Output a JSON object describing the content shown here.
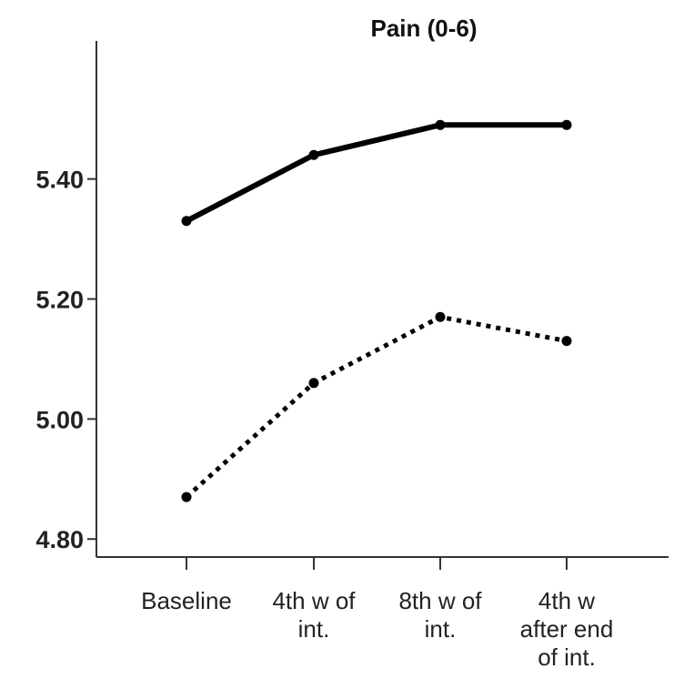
{
  "chart_data": {
    "type": "line",
    "title": "Pain (0-6)",
    "xlabel": "",
    "ylabel": "",
    "categories": [
      [
        "Baseline"
      ],
      [
        "4th w of",
        "int."
      ],
      [
        "8th w of",
        "int."
      ],
      [
        "4th w",
        "after end",
        "of int."
      ]
    ],
    "yticks": [
      "4.80",
      "5.00",
      "5.20",
      "5.40"
    ],
    "ylim": [
      4.77,
      5.63
    ],
    "grid": false,
    "legend": "none",
    "series": [
      {
        "style": "solid",
        "color": "#000000",
        "values": [
          5.33,
          5.44,
          5.49,
          5.49
        ]
      },
      {
        "style": "dotted",
        "color": "#000000",
        "values": [
          4.87,
          5.06,
          5.17,
          5.13
        ]
      }
    ]
  }
}
